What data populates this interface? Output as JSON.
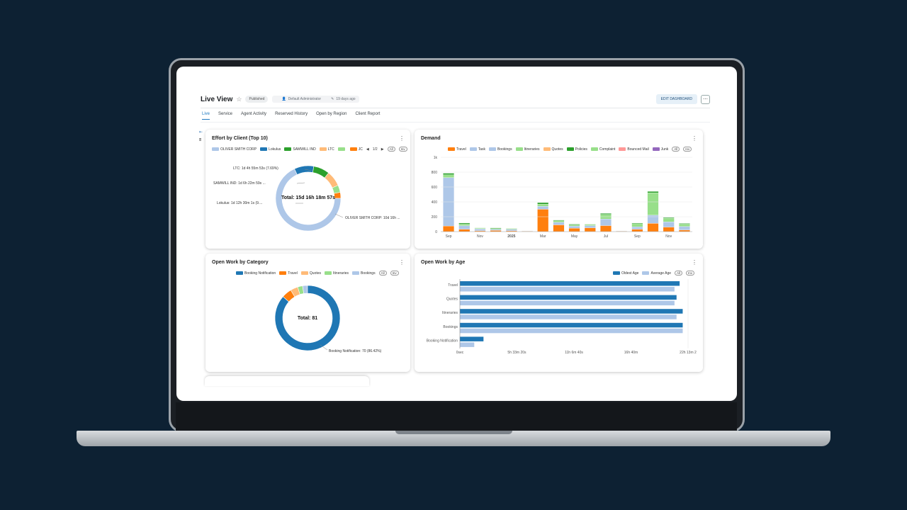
{
  "header": {
    "title": "Live View",
    "status": "Published",
    "author": "Default Administrator",
    "updated": "19 days ago",
    "edit_label": "EDIT DASHBOARD",
    "more_label": "⋯"
  },
  "tabs": [
    {
      "label": "Live"
    },
    {
      "label": "Service"
    },
    {
      "label": "Agent Activity"
    },
    {
      "label": "Reserved History"
    },
    {
      "label": "Open by Region"
    },
    {
      "label": "Client Report"
    }
  ],
  "colors": {
    "blue_dark": "#1f77b4",
    "blue_light": "#aec7e8",
    "orange": "#ff7f0e",
    "orange_light": "#ffbb78",
    "green": "#2ca02c",
    "green_light": "#98df8a",
    "red_light": "#ff9896",
    "purple": "#9467bd"
  },
  "effort_by_client": {
    "title": "Effort by Client (Top 10)",
    "legend": [
      {
        "name": "OLIVER SMITH CORP",
        "color": "#aec7e8"
      },
      {
        "name": "Lokulus",
        "color": "#1f77b4"
      },
      {
        "name": "SAMWILL IND",
        "color": "#2ca02c"
      },
      {
        "name": "LTC",
        "color": "#ffbb78"
      },
      {
        "name": "",
        "color": "#98df8a"
      },
      {
        "name": "JC",
        "color": "#ff7f0e"
      }
    ],
    "pager": "1/2",
    "all_label": "All",
    "inv_label": "Inv",
    "center": "Total: 15d 16h 18m 57s",
    "labels": {
      "ltc": "LTC: 1d 4h 55m 53s (7.69%)",
      "samwill": "SAMWILL IND: 1d 6h 22m 59s ...",
      "lokulus": "Lokulus: 1d 12h 30m 1s (9....",
      "oliver": "OLIVER SMITH CORP: 10d 16h ..."
    }
  },
  "demand": {
    "title": "Demand",
    "legend": [
      {
        "name": "Travel",
        "color": "#ff7f0e"
      },
      {
        "name": "Task",
        "color": "#aec7e8"
      },
      {
        "name": "Bookings",
        "color": "#aec7e8"
      },
      {
        "name": "Itineraries",
        "color": "#98df8a"
      },
      {
        "name": "Quotes",
        "color": "#ffbb78"
      },
      {
        "name": "Policies",
        "color": "#2ca02c"
      },
      {
        "name": "Complaint",
        "color": "#98df8a"
      },
      {
        "name": "Bounced Mail",
        "color": "#ff9896"
      },
      {
        "name": "Junk",
        "color": "#9467bd"
      }
    ],
    "all_label": "All",
    "inv_label": "Inv"
  },
  "open_by_category": {
    "title": "Open Work by Category",
    "legend": [
      {
        "name": "Booking Notification",
        "color": "#1f77b4"
      },
      {
        "name": "Travel",
        "color": "#ff7f0e"
      },
      {
        "name": "Quotes",
        "color": "#ffbb78"
      },
      {
        "name": "Itineraries",
        "color": "#98df8a"
      },
      {
        "name": "Bookings",
        "color": "#aec7e8"
      }
    ],
    "all_label": "All",
    "inv_label": "Inv",
    "center": "Total: 81",
    "slice_label": "Booking Notification: 70 (86.42%)"
  },
  "open_by_age": {
    "title": "Open Work by Age",
    "legend": [
      {
        "name": "Oldest Age",
        "color": "#1f77b4"
      },
      {
        "name": "Average Age",
        "color": "#aec7e8"
      }
    ],
    "all_label": "All",
    "inv_label": "Inv"
  },
  "chart_data": [
    {
      "type": "pie",
      "title": "Effort by Client (Top 10)",
      "center_label": "Total: 15d 16h 18m 57s",
      "slices": [
        {
          "name": "OLIVER SMITH CORP",
          "value": 68.0,
          "color": "#aec7e8"
        },
        {
          "name": "Lokulus",
          "value": 9.7,
          "color": "#1f77b4"
        },
        {
          "name": "SAMWILL IND",
          "value": 8.0,
          "color": "#2ca02c"
        },
        {
          "name": "LTC",
          "value": 7.69,
          "color": "#ffbb78"
        },
        {
          "name": "",
          "value": 3.6,
          "color": "#98df8a"
        },
        {
          "name": "JC",
          "value": 3.0,
          "color": "#ff7f0e"
        }
      ]
    },
    {
      "type": "bar",
      "title": "Demand",
      "stacked": true,
      "ylim": [
        0,
        1000
      ],
      "yticks": [
        0,
        200,
        400,
        600,
        800,
        "1k"
      ],
      "x_tick_labels": [
        {
          "index": 0,
          "label": "Sep"
        },
        {
          "index": 2,
          "label": "Nov"
        },
        {
          "index": 4,
          "label": "2025"
        },
        {
          "index": 6,
          "label": "Mar"
        },
        {
          "index": 8,
          "label": "May"
        },
        {
          "index": 10,
          "label": "Jul"
        },
        {
          "index": 12,
          "label": "Sep"
        },
        {
          "index": 14,
          "label": "Nov"
        }
      ],
      "series": [
        {
          "name": "Travel",
          "color": "#ff7f0e",
          "values": [
            75,
            30,
            10,
            15,
            10,
            5,
            300,
            90,
            45,
            50,
            80,
            5,
            30,
            110,
            60,
            20
          ]
        },
        {
          "name": "Task",
          "color": "#aec7e8",
          "values": [
            650,
            50,
            25,
            15,
            20,
            5,
            40,
            35,
            30,
            30,
            90,
            5,
            35,
            110,
            70,
            50
          ]
        },
        {
          "name": "Itineraries",
          "color": "#98df8a",
          "values": [
            40,
            20,
            10,
            10,
            10,
            0,
            30,
            20,
            15,
            15,
            60,
            0,
            40,
            300,
            50,
            30
          ]
        },
        {
          "name": "Policies",
          "color": "#2ca02c",
          "values": [
            20,
            15,
            5,
            10,
            5,
            0,
            20,
            10,
            10,
            5,
            15,
            0,
            10,
            20,
            10,
            10
          ]
        }
      ]
    },
    {
      "type": "pie",
      "title": "Open Work by Category",
      "center_label": "Total: 81",
      "slices": [
        {
          "name": "Booking Notification",
          "value": 70,
          "color": "#1f77b4"
        },
        {
          "name": "Travel",
          "value": 4,
          "color": "#ff7f0e"
        },
        {
          "name": "Quotes",
          "value": 3,
          "color": "#ffbb78"
        },
        {
          "name": "Itineraries",
          "value": 2,
          "color": "#98df8a"
        },
        {
          "name": "Bookings",
          "value": 2,
          "color": "#aec7e8"
        }
      ]
    },
    {
      "type": "bar",
      "orientation": "horizontal",
      "title": "Open Work by Age",
      "categories": [
        "Travel",
        "Quotes",
        "Itineraries",
        "Bookings",
        "Booking Notification"
      ],
      "x_tick_labels": [
        "0sec",
        "5h 33m 20s",
        "11h 6m 40s",
        "16h 40m",
        "22h 13m 2"
      ],
      "xlim_hours": [
        0,
        22.22
      ],
      "series": [
        {
          "name": "Oldest Age",
          "color": "#1f77b4",
          "values_hours": [
            21.4,
            21.1,
            21.7,
            21.7,
            2.3
          ]
        },
        {
          "name": "Average Age",
          "color": "#aec7e8",
          "values_hours": [
            20.9,
            20.9,
            21.1,
            21.7,
            1.4
          ]
        }
      ]
    }
  ]
}
